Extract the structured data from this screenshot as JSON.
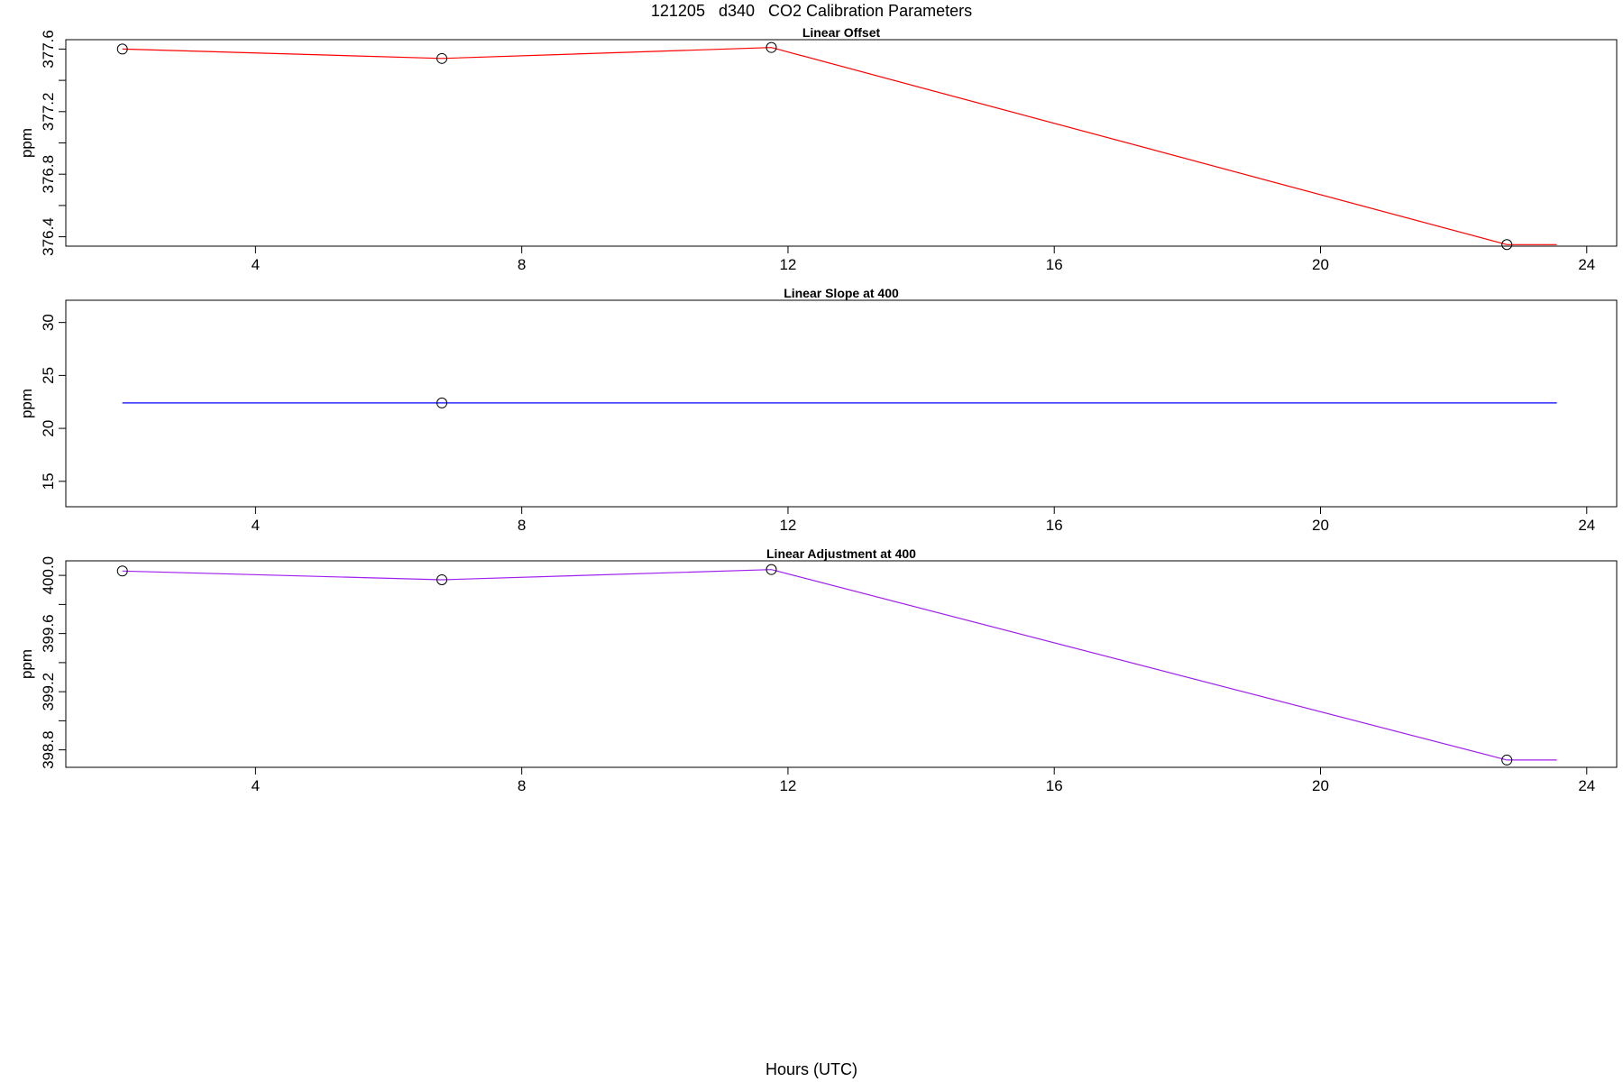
{
  "figure": {
    "title": "121205   d340   CO2 Calibration Parameters",
    "xlabel": "Hours (UTC)"
  },
  "colors": {
    "offset_line": "#ff0000",
    "slope_line": "#0000ff",
    "adjustment_line": "#a020f0",
    "marker": "#000000"
  },
  "chart_data": [
    {
      "type": "line",
      "title": "Linear Offset",
      "xlabel": "",
      "ylabel": "ppm",
      "xlim": [
        1.15,
        24.45
      ],
      "ylim": [
        376.34,
        377.66
      ],
      "xticks": [
        4,
        8,
        12,
        16,
        20,
        24
      ],
      "yticks": [
        376.4,
        376.6,
        376.8,
        377.0,
        377.2,
        377.4,
        377.6
      ],
      "ytick_labels": [
        "376.4",
        "",
        "376.8",
        "",
        "377.2",
        "",
        "377.6"
      ],
      "x": [
        2.0,
        6.8,
        11.75,
        22.8,
        23.55
      ],
      "y": [
        377.6,
        377.54,
        377.61,
        376.35,
        376.35
      ],
      "markers": [
        0,
        1,
        2,
        3
      ]
    },
    {
      "type": "line",
      "title": "Linear Slope at 400",
      "xlabel": "",
      "ylabel": "ppm",
      "xlim": [
        1.15,
        24.45
      ],
      "ylim": [
        12.6,
        32.1
      ],
      "xticks": [
        4,
        8,
        12,
        16,
        20,
        24
      ],
      "yticks": [
        15,
        20,
        25,
        30
      ],
      "ytick_labels": [
        "15",
        "20",
        "25",
        "30"
      ],
      "x": [
        2.0,
        6.8,
        23.55
      ],
      "y": [
        22.4,
        22.4,
        22.4
      ],
      "markers": [
        1
      ]
    },
    {
      "type": "line",
      "title": "Linear Adjustment at 400",
      "xlabel": "",
      "ylabel": "ppm",
      "xlim": [
        1.15,
        24.45
      ],
      "ylim": [
        398.68,
        400.1
      ],
      "xticks": [
        4,
        8,
        12,
        16,
        20,
        24
      ],
      "yticks": [
        398.8,
        399.0,
        399.2,
        399.4,
        399.6,
        399.8,
        400.0
      ],
      "ytick_labels": [
        "398.8",
        "",
        "399.2",
        "",
        "399.6",
        "",
        "400.0"
      ],
      "x": [
        2.0,
        6.8,
        11.75,
        22.8,
        23.55
      ],
      "y": [
        400.03,
        399.97,
        400.04,
        398.73,
        398.73
      ],
      "markers": [
        0,
        1,
        2,
        3
      ]
    }
  ]
}
